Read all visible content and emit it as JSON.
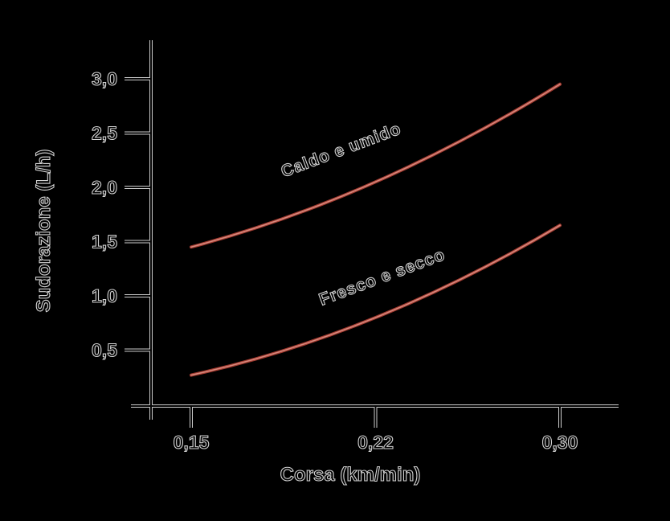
{
  "chart_data": {
    "type": "line",
    "title": "",
    "xlabel": "Corsa (km/min)",
    "ylabel": "Sudorazione (L/h)",
    "x_values": [
      0.15,
      0.22,
      0.3
    ],
    "x_tick_labels": [
      "0,15",
      "0,22",
      "0,30"
    ],
    "y_tick_values": [
      0.5,
      1.0,
      1.5,
      2.0,
      2.5,
      3.0
    ],
    "y_tick_labels": [
      "0,5",
      "1,0",
      "1,5",
      "2,0",
      "2,5",
      "3,0"
    ],
    "ylim": [
      0,
      3.35
    ],
    "grid": false,
    "legend_position": "labels-on-curves",
    "series": [
      {
        "name": "Caldo e umido",
        "values": [
          1.45,
          2.05,
          2.95
        ]
      },
      {
        "name": "Fresco e secco",
        "values": [
          0.27,
          0.8,
          1.65
        ]
      }
    ],
    "colors": {
      "background": "#000000",
      "axis_outline": "#c9c9c9",
      "axis_core": "#050505",
      "text_outline": "#d3d3d3",
      "curve_edge": "#a33b31",
      "curve_core": "#d6897d"
    }
  }
}
